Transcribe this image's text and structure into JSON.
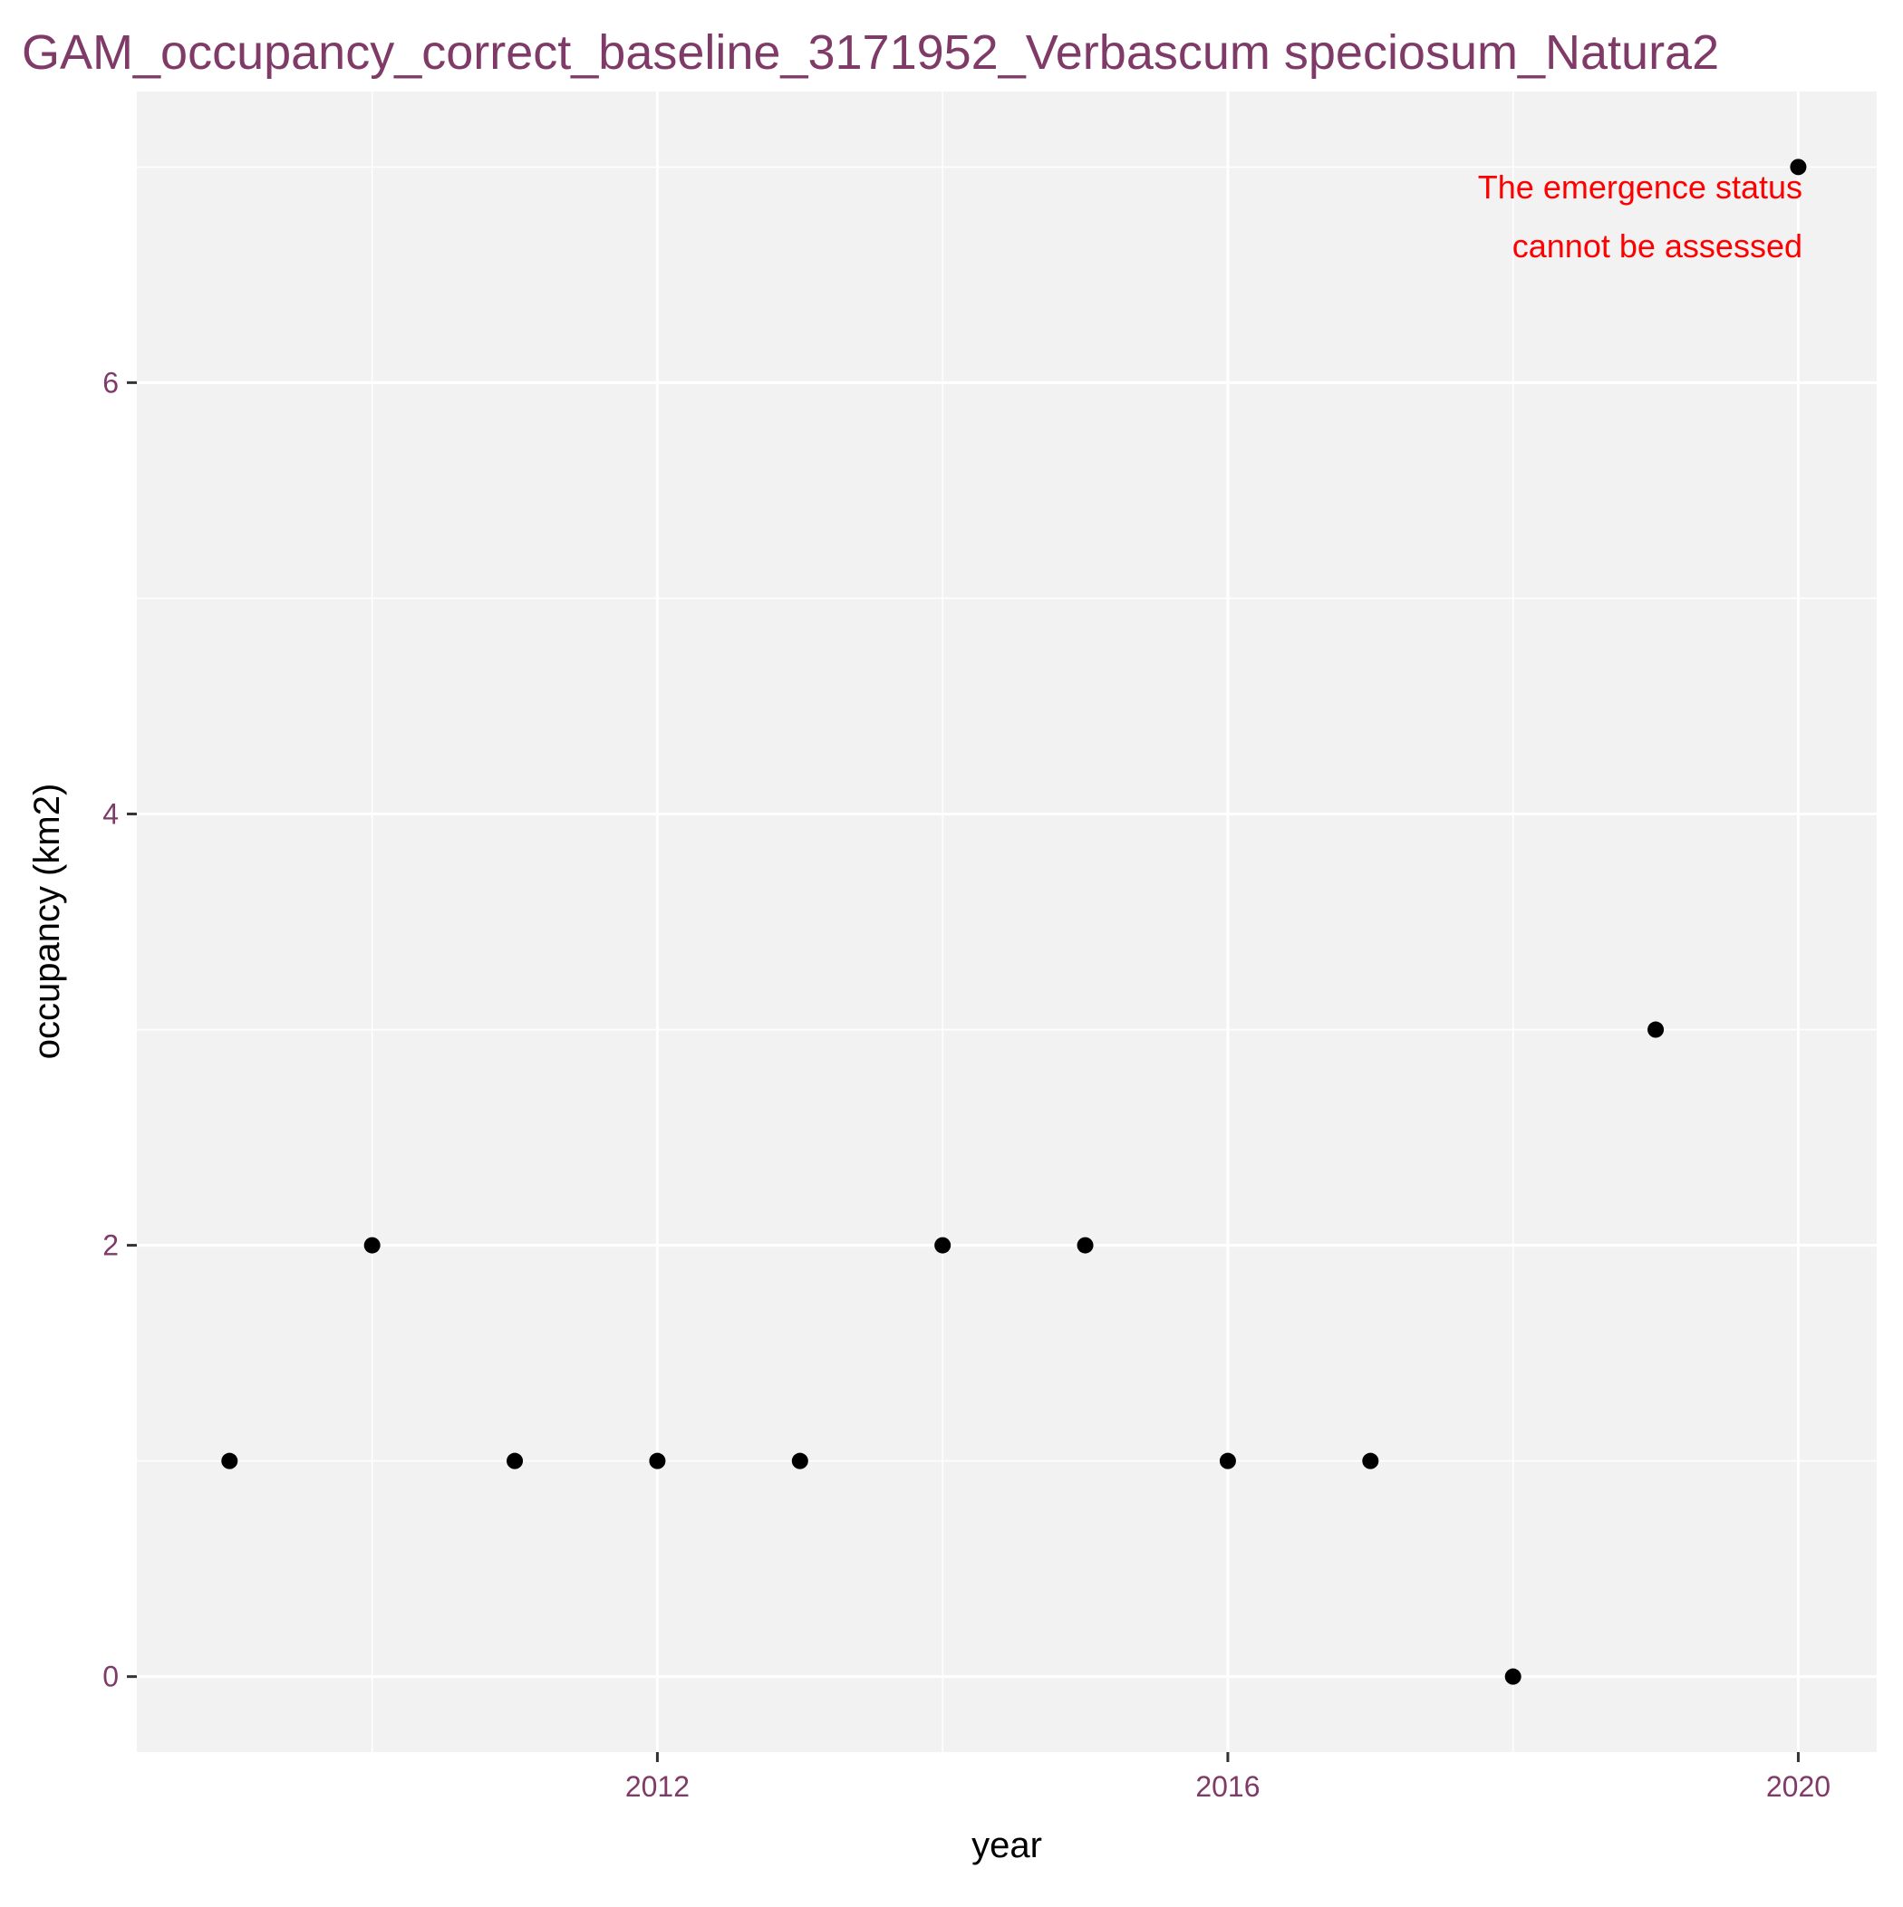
{
  "chart_data": {
    "type": "scatter",
    "title": "GAM_occupancy_correct_baseline_3171952_Verbascum speciosum_Natura2",
    "xlabel": "year",
    "ylabel": "occupancy (km2)",
    "x": [
      2009,
      2010,
      2011,
      2012,
      2013,
      2014,
      2015,
      2016,
      2017,
      2018,
      2019,
      2020
    ],
    "y": [
      1,
      2,
      1,
      1,
      1,
      2,
      2,
      1,
      1,
      0,
      3,
      7
    ],
    "xlim": [
      2008.35,
      2020.55
    ],
    "ylim": [
      -0.35,
      7.35
    ],
    "x_ticks": [
      2012,
      2016,
      2020
    ],
    "x_tick_labels": [
      "2012",
      "2016",
      "2020"
    ],
    "y_ticks": [
      0,
      2,
      4,
      6
    ],
    "y_tick_labels": [
      "0",
      "2",
      "4",
      "6"
    ],
    "grid": true,
    "annotation": {
      "lines": [
        "The emergence status",
        "cannot be assessed"
      ],
      "placement": "top-right",
      "color": "#ff0000"
    },
    "colors": {
      "title": "#7f3a67",
      "tick_labels": "#7f3a67",
      "panel_background": "#f2f2f2",
      "grid": "#ffffff",
      "points": "#000000"
    }
  }
}
